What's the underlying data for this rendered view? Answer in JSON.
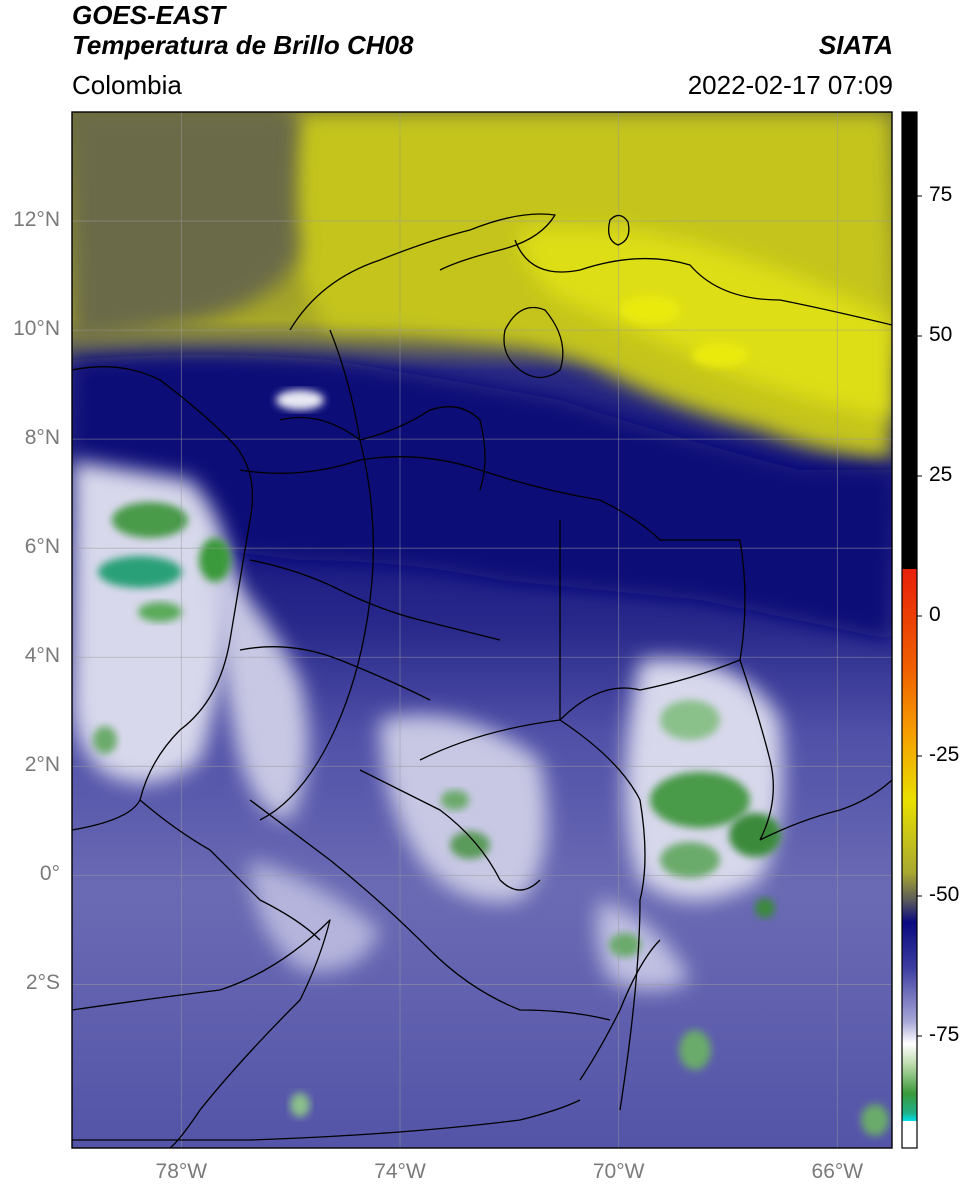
{
  "header": {
    "satellite": "GOES-EAST",
    "product": "Temperatura de Brillo CH08",
    "brand": "SIATA",
    "region": "Colombia",
    "timestamp": "2022-02-17 07:09"
  },
  "map": {
    "lon_range": [
      -80,
      -65
    ],
    "lat_range": [
      -5,
      14
    ],
    "lat_ticks": [
      {
        "value": 12,
        "label": "12°N"
      },
      {
        "value": 10,
        "label": "10°N"
      },
      {
        "value": 8,
        "label": "8°N"
      },
      {
        "value": 6,
        "label": "6°N"
      },
      {
        "value": 4,
        "label": "4°N"
      },
      {
        "value": 2,
        "label": "2°N"
      },
      {
        "value": 0,
        "label": "0°"
      },
      {
        "value": -2,
        "label": "2°S"
      }
    ],
    "lon_ticks": [
      {
        "value": -78,
        "label": "78°W"
      },
      {
        "value": -74,
        "label": "74°W"
      },
      {
        "value": -70,
        "label": "70°W"
      },
      {
        "value": -66,
        "label": "66°W"
      }
    ],
    "grid": true
  },
  "colorbar": {
    "range": [
      -95,
      90
    ],
    "ticks": [
      {
        "value": 75,
        "label": "75"
      },
      {
        "value": 50,
        "label": "50"
      },
      {
        "value": 25,
        "label": "25"
      },
      {
        "value": 0,
        "label": "0"
      },
      {
        "value": -25,
        "label": "-25"
      },
      {
        "value": -50,
        "label": "-50"
      },
      {
        "value": -75,
        "label": "-75"
      }
    ],
    "colors": {
      "warm_black": "#000000",
      "red": "#e8200a",
      "orange": "#f59a00",
      "yellow": "#e8e000",
      "olive": "#b8b020",
      "gray": "#555555",
      "navy": "#0a0a7a",
      "blue": "#4a4aa8",
      "lavender": "#a8a8d8",
      "white": "#ffffff",
      "light_green": "#c8e0b8",
      "green": "#3a9a3a",
      "teal": "#20b088",
      "cyan": "#00e0e8"
    }
  }
}
